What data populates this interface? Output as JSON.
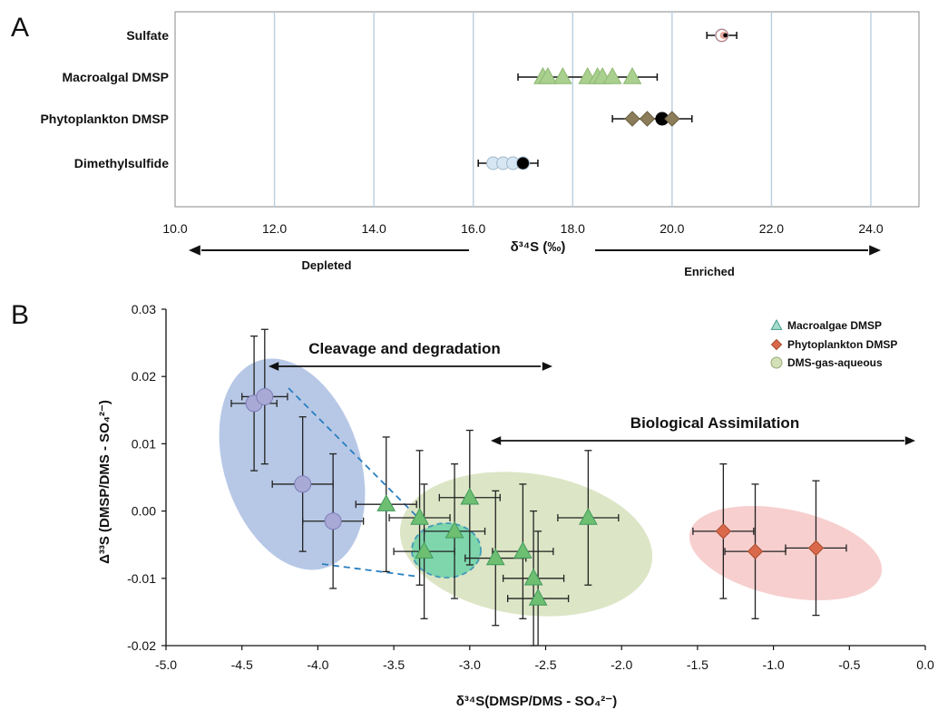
{
  "panels": {
    "a": "A",
    "b": "B"
  },
  "chart_data": [
    {
      "type": "scatter",
      "orientation": "horizontal-categories",
      "categories": [
        "Sulfate",
        "Macroalgal DMSP",
        "Phytoplankton DMSP",
        "Dimethylsulfide"
      ],
      "xlabel": "δ³⁴S (‰)",
      "xlim": [
        10.0,
        24.0
      ],
      "xticks": [
        "10.0",
        "12.0",
        "14.0",
        "16.0",
        "18.0",
        "20.0",
        "22.0",
        "24.0"
      ],
      "grid": "vertical",
      "arrows": {
        "left": "Depleted",
        "right": "Enriched"
      },
      "series": [
        {
          "category": "Sulfate",
          "marker": "circle",
          "color": "#f2c7b5",
          "values": [
            21.0,
            21.0,
            21.0
          ],
          "range": [
            20.7,
            21.3
          ]
        },
        {
          "category": "Macroalgal DMSP",
          "marker": "triangle",
          "color": "#a9d08e",
          "values": [
            17.4,
            17.5,
            17.8,
            18.3,
            18.5,
            18.6,
            18.8,
            19.2
          ],
          "range": [
            16.9,
            19.7
          ]
        },
        {
          "category": "Phytoplankton DMSP",
          "marker": "diamond",
          "color": "#8b7d5a",
          "values": [
            19.2,
            19.5,
            19.8,
            20.0
          ],
          "range": [
            18.8,
            20.4
          ],
          "highlight": 19.8
        },
        {
          "category": "Dimethylsulfide",
          "marker": "circle",
          "color": "#d6e6f2",
          "values": [
            16.4,
            16.6,
            16.8,
            17.0
          ],
          "range": [
            16.1,
            17.3
          ],
          "highlight": 17.0
        }
      ]
    },
    {
      "type": "scatter",
      "xlabel": "δ³⁴S(DMSP/DMS - SO₄²⁻)",
      "ylabel": "Δ³³S (DMSP/DMS - SO₄²⁻)",
      "xlim": [
        -5.0,
        0.0
      ],
      "ylim": [
        -0.02,
        0.03
      ],
      "xticks": [
        "-5.0",
        "-4.5",
        "-4.0",
        "-3.5",
        "-3.0",
        "-2.5",
        "-2.0",
        "-1.5",
        "-1.0",
        "-0.5",
        "0.0"
      ],
      "yticks": [
        "-0.02",
        "-0.01",
        "0.00",
        "0.01",
        "0.02",
        "0.03"
      ],
      "legend_position": "top-right",
      "annotations": [
        "Cleavage and degradation",
        "Biological Assimilation"
      ],
      "legend": [
        "Macroalgae DMSP",
        "Phytoplankton DMSP",
        "DMS-gas-aqueous"
      ],
      "series": [
        {
          "name": "Macroalgae DMSP",
          "marker": "triangle",
          "color": "#6fbf73",
          "points": [
            {
              "x": -3.55,
              "y": 0.001,
              "xerr": 0.2,
              "yerr": 0.01
            },
            {
              "x": -3.33,
              "y": -0.001,
              "xerr": 0.2,
              "yerr": 0.01
            },
            {
              "x": -3.3,
              "y": -0.006,
              "xerr": 0.2,
              "yerr": 0.01
            },
            {
              "x": -3.1,
              "y": -0.003,
              "xerr": 0.2,
              "yerr": 0.01
            },
            {
              "x": -3.0,
              "y": 0.002,
              "xerr": 0.2,
              "yerr": 0.01
            },
            {
              "x": -2.83,
              "y": -0.007,
              "xerr": 0.2,
              "yerr": 0.01
            },
            {
              "x": -2.65,
              "y": -0.006,
              "xerr": 0.2,
              "yerr": 0.01
            },
            {
              "x": -2.58,
              "y": -0.01,
              "xerr": 0.2,
              "yerr": 0.01
            },
            {
              "x": -2.55,
              "y": -0.013,
              "xerr": 0.2,
              "yerr": 0.01
            },
            {
              "x": -2.22,
              "y": -0.001,
              "xerr": 0.2,
              "yerr": 0.01
            }
          ]
        },
        {
          "name": "Phytoplankton DMSP",
          "marker": "diamond",
          "color": "#d9694a",
          "points": [
            {
              "x": -1.33,
              "y": -0.003,
              "xerr": 0.2,
              "yerr": 0.01
            },
            {
              "x": -1.12,
              "y": -0.006,
              "xerr": 0.2,
              "yerr": 0.01
            },
            {
              "x": -0.72,
              "y": -0.0055,
              "xerr": 0.2,
              "yerr": 0.01
            }
          ]
        },
        {
          "name": "DMS-gas-aqueous",
          "marker": "circle",
          "color": "#a9a9d6",
          "points": [
            {
              "x": -4.42,
              "y": 0.016,
              "xerr": 0.15,
              "yerr": 0.01
            },
            {
              "x": -4.35,
              "y": 0.017,
              "xerr": 0.15,
              "yerr": 0.01
            },
            {
              "x": -4.1,
              "y": 0.004,
              "xerr": 0.2,
              "yerr": 0.01
            },
            {
              "x": -3.9,
              "y": -0.0015,
              "xerr": 0.2,
              "yerr": 0.01
            }
          ]
        }
      ]
    }
  ]
}
